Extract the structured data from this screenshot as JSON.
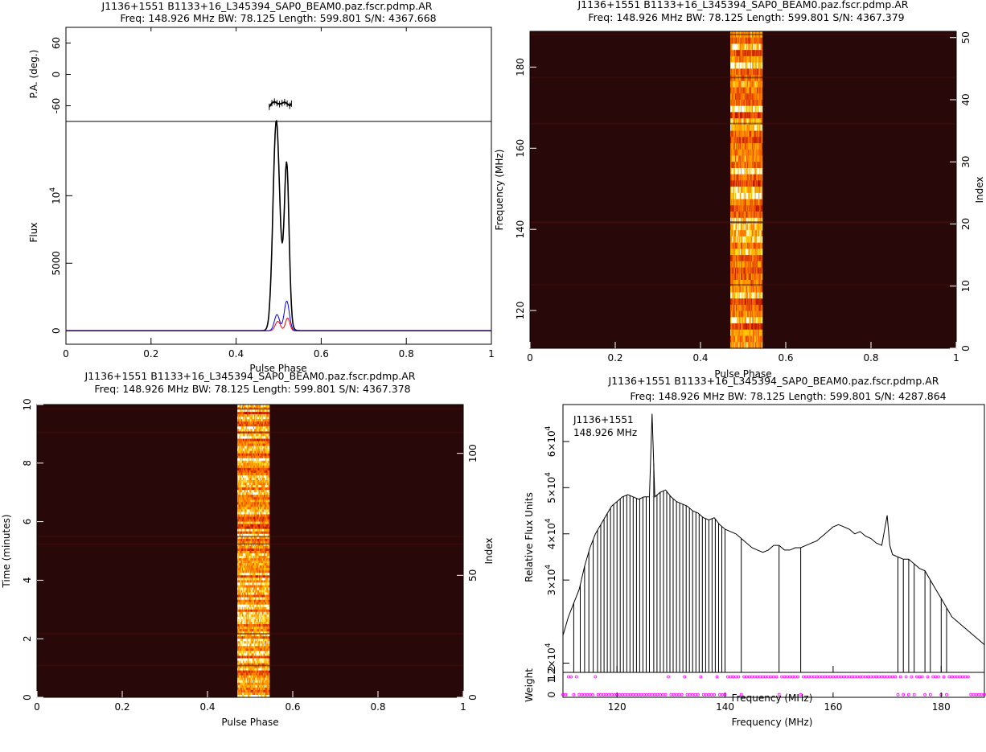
{
  "panels": {
    "profile": {
      "title": "J1136+1551  B1133+16_L345394_SAP0_BEAM0.paz.fscr.pdmp.AR",
      "subtitle": "Freq: 148.926 MHz  BW: 78.125  Length: 599.801  S/N: 4367.668"
    },
    "freq_phase": {
      "title": "J1136+1551  B1133+16_L345394_SAP0_BEAM0.paz.fscr.pdmp.AR",
      "subtitle": "Freq: 148.926 MHz  BW: 78.125  Length: 599.801  S/N: 4367.379"
    },
    "time_phase": {
      "title": "J1136+1551  B1133+16_L345394_SAP0_BEAM0.paz.fscr.pdmp.AR",
      "subtitle": "Freq: 148.926 MHz  BW: 78.125  Length: 599.801  S/N: 4367.378"
    },
    "bandpass": {
      "title": "J1136+1551  B1133+16_L345394_SAP0_BEAM0.paz.fscr.pdmp.AR",
      "subtitle": "Freq: 148.926 MHz  BW: 78.125  Length: 599.801  S/N: 4287.864",
      "annotation_line1": "J1136+1551",
      "annotation_line2": "148.926 MHz"
    }
  },
  "chart_data": [
    {
      "id": "pa",
      "type": "scatter",
      "ylabel": "P.A. (deg.)",
      "xlim": [
        0,
        1
      ],
      "ylim": [
        -90,
        90
      ],
      "yticks": [
        60,
        0,
        -60
      ],
      "x": [
        0.478,
        0.484,
        0.49,
        0.496,
        0.502,
        0.508,
        0.514,
        0.52,
        0.526,
        0.53
      ],
      "y": [
        -62,
        -55,
        -52,
        -55,
        -57,
        -55,
        -53,
        -56,
        -60,
        -56
      ],
      "color": "#000000"
    },
    {
      "id": "flux",
      "type": "line",
      "xlabel": "Pulse Phase",
      "ylabel": "Flux",
      "xlim": [
        0,
        1
      ],
      "ylim": [
        -1000,
        15500
      ],
      "yticks": [
        0,
        5000,
        10000
      ],
      "ytick_labels": [
        "0",
        "5000",
        "10^4"
      ],
      "xticks": [
        0,
        0.2,
        0.4,
        0.6,
        0.8,
        1
      ],
      "xtick_labels": [
        "0",
        "0.2",
        "0.4",
        "0.6",
        "0.8",
        "1"
      ],
      "series": [
        {
          "color": "#000000",
          "components": [
            [
              14000,
              0.494,
              0.0075
            ],
            [
              11000,
              0.519,
              0.0055
            ],
            [
              2600,
              0.506,
              0.012
            ]
          ]
        },
        {
          "color": "#ff0000",
          "components": [
            [
              700,
              0.498,
              0.006
            ],
            [
              950,
              0.521,
              0.005
            ]
          ]
        },
        {
          "color": "#0000ff",
          "components": [
            [
              1200,
              0.496,
              0.006
            ],
            [
              2200,
              0.519,
              0.006
            ]
          ]
        }
      ]
    },
    {
      "id": "freq_phase",
      "type": "heatmap",
      "xlabel": "Pulse Phase",
      "ylabel": "Frequency (MHz)",
      "y2label": "Index",
      "xlim": [
        0,
        1
      ],
      "ylim": [
        110.7,
        188.8
      ],
      "y2lim": [
        0,
        51
      ],
      "xticks": [
        0,
        0.2,
        0.4,
        0.6,
        0.8,
        1
      ],
      "xtick_labels": [
        "0",
        "0.2",
        "0.4",
        "0.6",
        "0.8",
        "1"
      ],
      "yticks": [
        120,
        140,
        160,
        180
      ],
      "y2ticks": [
        0,
        10,
        20,
        30,
        40,
        50
      ],
      "pulse_components": [
        [
          0.494,
          0.006,
          1.0
        ],
        [
          0.518,
          0.005,
          0.9
        ]
      ]
    },
    {
      "id": "time_phase",
      "type": "heatmap",
      "xlabel": "Pulse Phase",
      "ylabel": "Time (minutes)",
      "y2label": "Index",
      "xlim": [
        0,
        1
      ],
      "ylim": [
        0,
        10
      ],
      "y2lim": [
        0,
        120
      ],
      "xticks": [
        0,
        0.2,
        0.4,
        0.6,
        0.8,
        1
      ],
      "xtick_labels": [
        "0",
        "0.2",
        "0.4",
        "0.6",
        "0.8",
        "1"
      ],
      "yticks": [
        0,
        2,
        4,
        6,
        8,
        10
      ],
      "y2ticks": [
        0,
        50,
        100
      ],
      "pulse_components": [
        [
          0.497,
          0.006,
          1.0
        ],
        [
          0.52,
          0.005,
          0.9
        ]
      ]
    },
    {
      "id": "bandpass",
      "type": "line",
      "ylabel": "Relative Flux Units",
      "xlim": [
        110,
        188
      ],
      "ylim": [
        10000,
        68000
      ],
      "yticks": [
        12000,
        30000,
        40000,
        50000,
        60000
      ],
      "ytick_labels": [
        "1.2×10^4",
        "3×10^4",
        "4×10^4",
        "5×10^4",
        "6×10^4"
      ],
      "x": [
        110,
        111,
        112,
        113,
        114,
        115,
        116,
        117,
        118,
        119,
        120,
        121,
        122,
        123,
        124,
        125,
        126,
        126.5,
        127,
        128,
        129,
        130,
        131,
        132,
        133,
        134,
        135,
        136,
        137,
        138,
        139,
        140,
        141,
        142,
        143,
        144,
        145,
        146,
        147,
        148,
        149,
        150,
        151,
        152,
        153,
        154,
        155,
        156,
        157,
        158,
        159,
        160,
        161,
        162,
        163,
        164,
        165,
        166,
        167,
        168,
        169,
        170,
        170.5,
        171,
        172,
        173,
        174,
        175,
        176,
        177,
        178,
        179,
        180,
        181,
        182,
        183,
        184,
        185,
        186,
        187,
        188
      ],
      "y": [
        18000,
        22000,
        25000,
        28000,
        33000,
        37000,
        40000,
        42000,
        44000,
        46000,
        47000,
        48000,
        48500,
        48000,
        47500,
        48000,
        48000,
        66000,
        48000,
        49000,
        49500,
        48000,
        47000,
        46500,
        46000,
        45000,
        44500,
        43500,
        43000,
        43500,
        42000,
        41000,
        40500,
        40000,
        39000,
        38000,
        37000,
        36500,
        36000,
        36500,
        37500,
        37500,
        36500,
        36500,
        37000,
        37000,
        37500,
        38000,
        38500,
        39500,
        40500,
        41500,
        42000,
        41500,
        41000,
        40000,
        40500,
        39500,
        39000,
        38000,
        37500,
        44000,
        37500,
        35500,
        35000,
        34500,
        34500,
        33500,
        32500,
        32000,
        30000,
        28000,
        26000,
        24000,
        22000,
        21000,
        20000,
        19000,
        18000,
        17000,
        16000
      ],
      "dropouts": [
        112,
        113.2,
        114,
        114.8,
        115.6,
        116.4,
        117,
        117.6,
        118.2,
        118.8,
        119.4,
        120,
        120.6,
        121.2,
        121.8,
        122.4,
        123,
        123.6,
        124.2,
        124.8,
        125.4,
        126,
        126.8,
        127.4,
        128,
        128.6,
        129.2,
        129.8,
        130.4,
        131,
        131.6,
        132.2,
        132.8,
        133.4,
        134,
        134.6,
        135.2,
        135.8,
        136.4,
        137,
        137.6,
        138.2,
        138.8,
        139.4,
        140,
        143,
        150,
        154,
        172,
        173,
        174,
        175,
        177,
        178,
        180,
        181
      ],
      "color": "#000000"
    },
    {
      "id": "weights",
      "type": "scatter",
      "xlabel": "Frequency (MHz)",
      "ylabel": "Weight",
      "inner_label": "Frequency (MHz)",
      "xlim": [
        110,
        188
      ],
      "ylim": [
        -0.15,
        1.25
      ],
      "xticks": [
        120,
        140,
        160,
        180
      ],
      "yticks": [
        0,
        1.2
      ],
      "ytick_labels": [
        "0",
        "1.2"
      ],
      "color": "#ff00ff"
    }
  ]
}
